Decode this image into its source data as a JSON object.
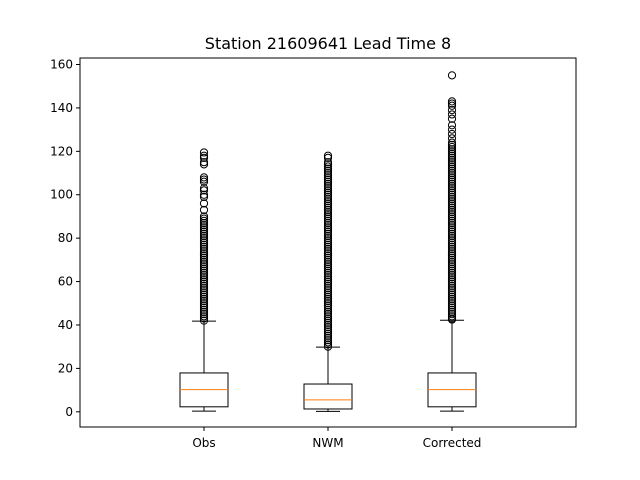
{
  "chart_data": {
    "type": "boxplot",
    "title": "Station 21609641 Lead Time 8",
    "xlabel": "",
    "ylabel": "",
    "ylim": [
      -7,
      163
    ],
    "yticks": [
      0,
      20,
      40,
      60,
      80,
      100,
      120,
      140,
      160
    ],
    "grid": false,
    "colors": {
      "box": "#000000",
      "median": "#ff7f0e",
      "outlier": "#000000"
    },
    "series": [
      {
        "name": "Obs",
        "whisker_low": 0.3,
        "q1": 2.3,
        "median": 10.2,
        "q3": 17.9,
        "whisker_high": 41.8,
        "outliers": [
          42,
          43,
          44,
          45,
          46,
          47,
          48,
          49,
          50,
          51,
          52,
          53,
          54,
          55,
          56,
          57,
          58,
          59,
          60,
          61,
          62,
          63,
          64,
          65,
          66,
          67,
          68,
          69,
          70,
          71,
          72,
          73,
          74,
          75,
          76,
          77,
          78,
          79,
          80,
          81,
          82,
          83,
          84,
          85,
          86,
          87,
          88,
          89,
          90,
          93,
          96,
          99,
          100,
          102,
          103,
          106,
          107,
          108,
          114,
          115,
          117,
          118,
          119.5
        ]
      },
      {
        "name": "NWM",
        "whisker_low": 0.2,
        "q1": 1.3,
        "median": 5.5,
        "q3": 12.8,
        "whisker_high": 29.8,
        "outliers": [
          30,
          31,
          32,
          33,
          34,
          35,
          36,
          37,
          38,
          39,
          40,
          41,
          42,
          43,
          44,
          45,
          46,
          47,
          48,
          49,
          50,
          51,
          52,
          53,
          54,
          55,
          56,
          57,
          58,
          59,
          60,
          61,
          62,
          63,
          64,
          65,
          66,
          67,
          68,
          69,
          70,
          71,
          72,
          73,
          74,
          75,
          76,
          77,
          78,
          79,
          80,
          81,
          82,
          83,
          84,
          85,
          86,
          87,
          88,
          89,
          90,
          91,
          92,
          93,
          94,
          95,
          96,
          97,
          98,
          99,
          100,
          101,
          102,
          103,
          104,
          105,
          106,
          107,
          108,
          109,
          110,
          111,
          112,
          113,
          114,
          115,
          117,
          118
        ]
      },
      {
        "name": "Corrected",
        "whisker_low": 0.3,
        "q1": 2.3,
        "median": 10.2,
        "q3": 17.9,
        "whisker_high": 42.2,
        "outliers": [
          42.5,
          43,
          44,
          45,
          46,
          47,
          48,
          49,
          50,
          51,
          52,
          53,
          54,
          55,
          56,
          57,
          58,
          59,
          60,
          61,
          62,
          63,
          64,
          65,
          66,
          67,
          68,
          69,
          70,
          71,
          72,
          73,
          74,
          75,
          76,
          77,
          78,
          79,
          80,
          81,
          82,
          83,
          84,
          85,
          86,
          87,
          88,
          89,
          90,
          91,
          92,
          93,
          94,
          95,
          96,
          97,
          98,
          99,
          100,
          101,
          102,
          103,
          104,
          105,
          106,
          107,
          108,
          109,
          110,
          111,
          112,
          113,
          114,
          115,
          116,
          117,
          118,
          119,
          120,
          121,
          122,
          123,
          124,
          126,
          128,
          130,
          132,
          135,
          137,
          139,
          141,
          142,
          143,
          155
        ]
      }
    ]
  }
}
